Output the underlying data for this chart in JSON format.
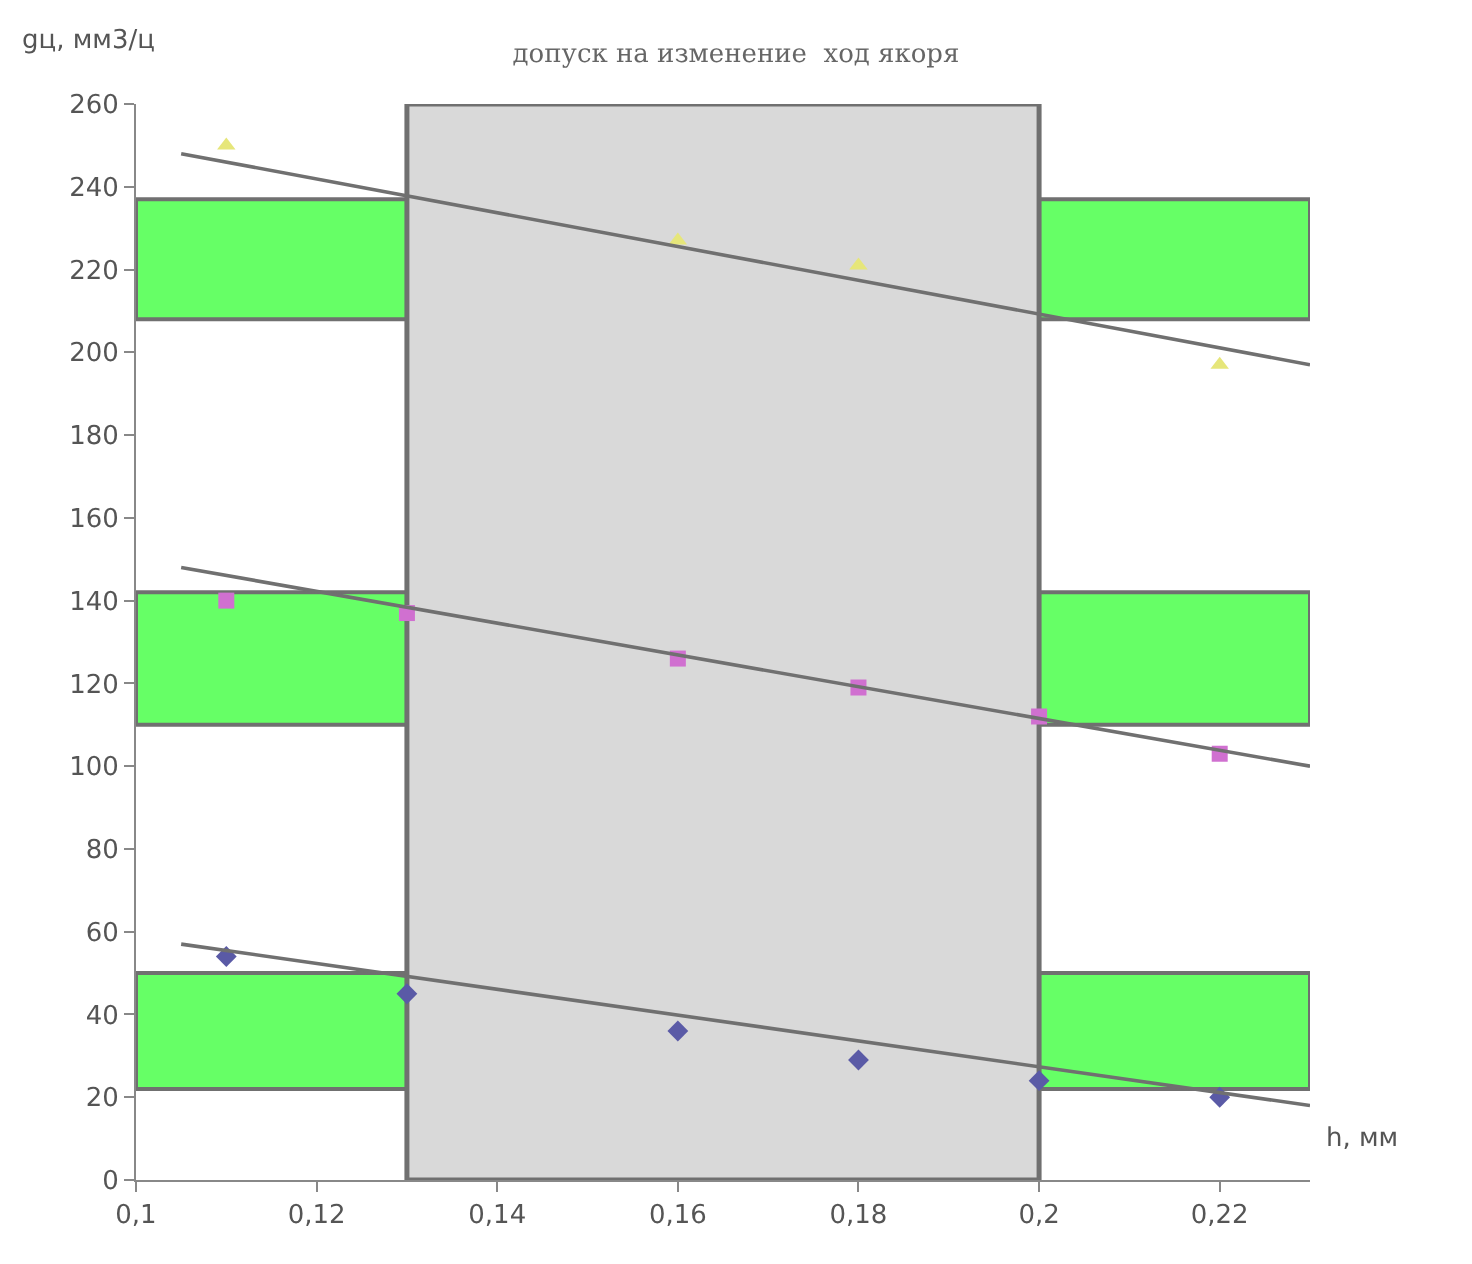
{
  "chart_data": {
    "type": "scatter",
    "title": "допуск на изменение  ход якоря",
    "xlabel": "h, мм",
    "ylabel": "gц, мм3/ц",
    "xlim": [
      0.1,
      0.23
    ],
    "ylim": [
      0,
      260
    ],
    "xticks": [
      {
        "value": 0.1,
        "label": "0,1"
      },
      {
        "value": 0.12,
        "label": "0,12"
      },
      {
        "value": 0.14,
        "label": "0,14"
      },
      {
        "value": 0.16,
        "label": "0,16"
      },
      {
        "value": 0.18,
        "label": "0,18"
      },
      {
        "value": 0.2,
        "label": "0,2"
      },
      {
        "value": 0.22,
        "label": "0,22"
      }
    ],
    "yticks": [
      0,
      20,
      40,
      60,
      80,
      100,
      120,
      140,
      160,
      180,
      200,
      220,
      240,
      260
    ],
    "grid": false,
    "bands": [
      {
        "axis": "y",
        "from": 208,
        "to": 237,
        "color": "#66ff66"
      },
      {
        "axis": "y",
        "from": 110,
        "to": 142,
        "color": "#66ff66"
      },
      {
        "axis": "y",
        "from": 22,
        "to": 50,
        "color": "#66ff66"
      },
      {
        "axis": "x",
        "from": 0.13,
        "to": 0.2,
        "color": "#d9d9d9"
      }
    ],
    "series": [
      {
        "marker": "triangle",
        "color": "#e6e67a",
        "x": [
          0.11,
          0.16,
          0.18,
          0.22
        ],
        "values": [
          250,
          227,
          221,
          197
        ]
      },
      {
        "marker": "square",
        "color": "#d070d0",
        "x": [
          0.11,
          0.13,
          0.16,
          0.18,
          0.2,
          0.22
        ],
        "values": [
          140,
          137,
          126,
          119,
          112,
          103
        ]
      },
      {
        "marker": "diamond",
        "color": "#5a5aa6",
        "x": [
          0.11,
          0.13,
          0.16,
          0.18,
          0.2,
          0.22
        ],
        "values": [
          54,
          45,
          36,
          29,
          24,
          20
        ]
      },
      {
        "type": "line",
        "marker": "none",
        "line_style": "solid",
        "color": "#707070",
        "x": [
          0.105,
          0.23
        ],
        "values": [
          248,
          197
        ]
      },
      {
        "type": "line",
        "marker": "none",
        "line_style": "solid",
        "color": "#707070",
        "x": [
          0.105,
          0.23
        ],
        "values": [
          148,
          100
        ]
      },
      {
        "type": "line",
        "marker": "none",
        "line_style": "solid",
        "color": "#707070",
        "x": [
          0.105,
          0.23
        ],
        "values": [
          57,
          18
        ]
      }
    ]
  }
}
